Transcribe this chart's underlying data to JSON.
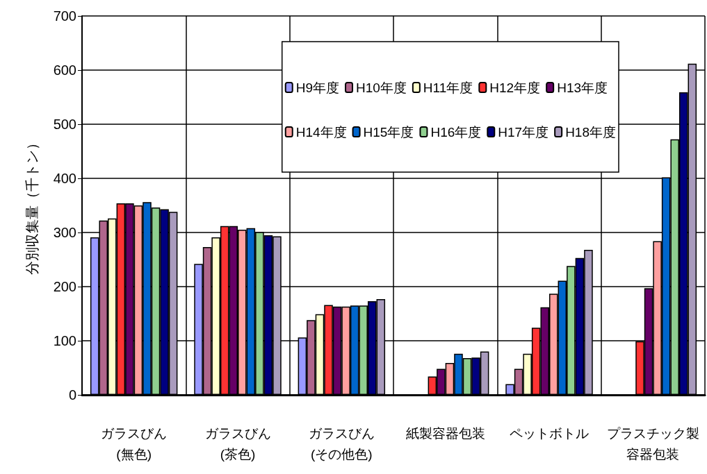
{
  "chart_data": {
    "type": "bar",
    "ylabel": "分別収集量（千トン）",
    "categories": [
      "ガラスびん\n(無色)",
      "ガラスびん\n(茶色)",
      "ガラスびん\n(その他色)",
      "紙製容器包装",
      "ペットボトル",
      "プラスチック製容器包装"
    ],
    "series": [
      {
        "name": "H9年度",
        "color": "#9999ff",
        "values": [
          291,
          242,
          106,
          null,
          20,
          null
        ]
      },
      {
        "name": "H10年度",
        "color": "#b0668c",
        "values": [
          322,
          273,
          138,
          null,
          48,
          null
        ]
      },
      {
        "name": "H11年度",
        "color": "#ffffcc",
        "values": [
          326,
          291,
          149,
          null,
          76,
          null
        ]
      },
      {
        "name": "H12年度",
        "color": "#ff3333",
        "values": [
          354,
          312,
          166,
          34,
          124,
          99
        ]
      },
      {
        "name": "H13年度",
        "color": "#660066",
        "values": [
          354,
          312,
          163,
          48,
          162,
          197
        ]
      },
      {
        "name": "H14年度",
        "color": "#ffa0a0",
        "values": [
          350,
          305,
          163,
          59,
          187,
          284
        ]
      },
      {
        "name": "H15年度",
        "color": "#0066cc",
        "values": [
          356,
          308,
          165,
          76,
          211,
          402
        ]
      },
      {
        "name": "H16年度",
        "color": "#8fcf8f",
        "values": [
          346,
          301,
          165,
          68,
          238,
          472
        ]
      },
      {
        "name": "H17年度",
        "color": "#000080",
        "values": [
          343,
          295,
          173,
          69,
          253,
          559
        ]
      },
      {
        "name": "H18年度",
        "color": "#a99bbd",
        "values": [
          338,
          293,
          177,
          80,
          268,
          612
        ]
      }
    ],
    "ylim": [
      0,
      700
    ],
    "yticks": [
      0,
      100,
      200,
      300,
      400,
      500,
      600,
      700
    ],
    "grid": true,
    "legend": "top right"
  }
}
